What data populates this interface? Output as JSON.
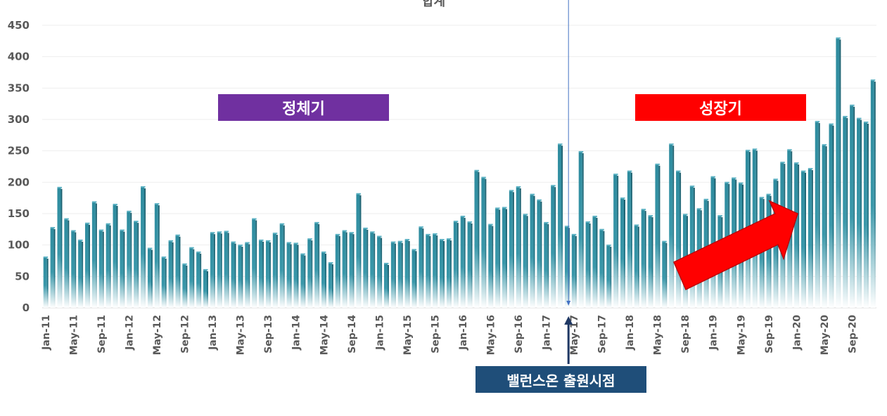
{
  "chart_data": {
    "type": "bar",
    "title": "합계",
    "ylim": [
      0,
      450
    ],
    "yticks": [
      0,
      50,
      100,
      150,
      200,
      250,
      300,
      350,
      400,
      450
    ],
    "grid": true,
    "xtick_labels": [
      "Jan-11",
      "May-11",
      "Sep-11",
      "Jan-12",
      "May-12",
      "Sep-12",
      "Jan-13",
      "May-13",
      "Sep-13",
      "Jan-14",
      "May-14",
      "Sep-14",
      "Jan-15",
      "May-15",
      "Sep-15",
      "Jan-16",
      "May-16",
      "Sep-16",
      "Jan-17",
      "May-17",
      "Sep-17",
      "Jan-18",
      "May-18",
      "Sep-18",
      "Jan-19",
      "May-19",
      "Sep-19",
      "Jan-20",
      "May-20",
      "Sep-20"
    ],
    "categories": [
      "Jan-11",
      "Feb-11",
      "Mar-11",
      "Apr-11",
      "May-11",
      "Jun-11",
      "Jul-11",
      "Aug-11",
      "Sep-11",
      "Oct-11",
      "Nov-11",
      "Dec-11",
      "Jan-12",
      "Feb-12",
      "Mar-12",
      "Apr-12",
      "May-12",
      "Jun-12",
      "Jul-12",
      "Aug-12",
      "Sep-12",
      "Oct-12",
      "Nov-12",
      "Dec-12",
      "Jan-13",
      "Feb-13",
      "Mar-13",
      "Apr-13",
      "May-13",
      "Jun-13",
      "Jul-13",
      "Aug-13",
      "Sep-13",
      "Oct-13",
      "Nov-13",
      "Dec-13",
      "Jan-14",
      "Feb-14",
      "Mar-14",
      "Apr-14",
      "May-14",
      "Jun-14",
      "Jul-14",
      "Aug-14",
      "Sep-14",
      "Oct-14",
      "Nov-14",
      "Dec-14",
      "Jan-15",
      "Feb-15",
      "Mar-15",
      "Apr-15",
      "May-15",
      "Jun-15",
      "Jul-15",
      "Aug-15",
      "Sep-15",
      "Oct-15",
      "Nov-15",
      "Dec-15",
      "Jan-16",
      "Feb-16",
      "Mar-16",
      "Apr-16",
      "May-16",
      "Jun-16",
      "Jul-16",
      "Aug-16",
      "Sep-16",
      "Oct-16",
      "Nov-16",
      "Dec-16",
      "Jan-17",
      "Feb-17",
      "Mar-17",
      "Apr-17",
      "May-17",
      "Jun-17",
      "Jul-17",
      "Aug-17",
      "Sep-17",
      "Oct-17",
      "Nov-17",
      "Dec-17",
      "Jan-18",
      "Feb-18",
      "Mar-18",
      "Apr-18",
      "May-18",
      "Jun-18",
      "Jul-18",
      "Aug-18",
      "Sep-18",
      "Oct-18",
      "Nov-18",
      "Dec-18",
      "Jan-19",
      "Feb-19",
      "Mar-19",
      "Apr-19",
      "May-19",
      "Jun-19",
      "Jul-19",
      "Aug-19",
      "Sep-19",
      "Oct-19",
      "Nov-19",
      "Dec-19",
      "Jan-20",
      "Feb-20",
      "Mar-20",
      "Apr-20",
      "May-20",
      "Jun-20",
      "Jul-20",
      "Aug-20",
      "Sep-20",
      "Oct-20",
      "Nov-20",
      "Dec-20"
    ],
    "values": [
      80,
      127,
      191,
      141,
      122,
      107,
      134,
      168,
      123,
      133,
      164,
      123,
      153,
      137,
      192,
      94,
      165,
      80,
      106,
      115,
      69,
      95,
      88,
      60,
      119,
      120,
      121,
      104,
      99,
      103,
      141,
      107,
      106,
      118,
      133,
      103,
      102,
      85,
      109,
      135,
      88,
      71,
      116,
      122,
      119,
      181,
      126,
      120,
      113,
      70,
      104,
      105,
      108,
      92,
      128,
      116,
      117,
      108,
      109,
      137,
      145,
      136,
      218,
      207,
      132,
      158,
      159,
      186,
      192,
      148,
      180,
      171,
      135,
      194,
      260,
      129,
      116,
      248,
      136,
      145,
      124,
      99,
      212,
      174,
      217,
      131,
      156,
      146,
      228,
      105,
      260,
      217,
      148,
      193,
      157,
      172,
      208,
      146,
      199,
      206,
      198,
      250,
      252,
      175,
      180,
      204,
      231,
      251,
      230,
      217,
      221,
      296,
      259,
      292,
      429,
      304,
      322,
      301,
      295,
      362
    ],
    "annotations": {
      "stagnant": "정체기",
      "growth": "성장기",
      "launch": "밸런스온 출원시점"
    },
    "colors": {
      "bar": "#2e8b9e",
      "stagnant_box": "#7030a0",
      "growth_box": "#ff0000",
      "launch_box": "#1f4e79",
      "arrow": "#ff0000"
    }
  }
}
